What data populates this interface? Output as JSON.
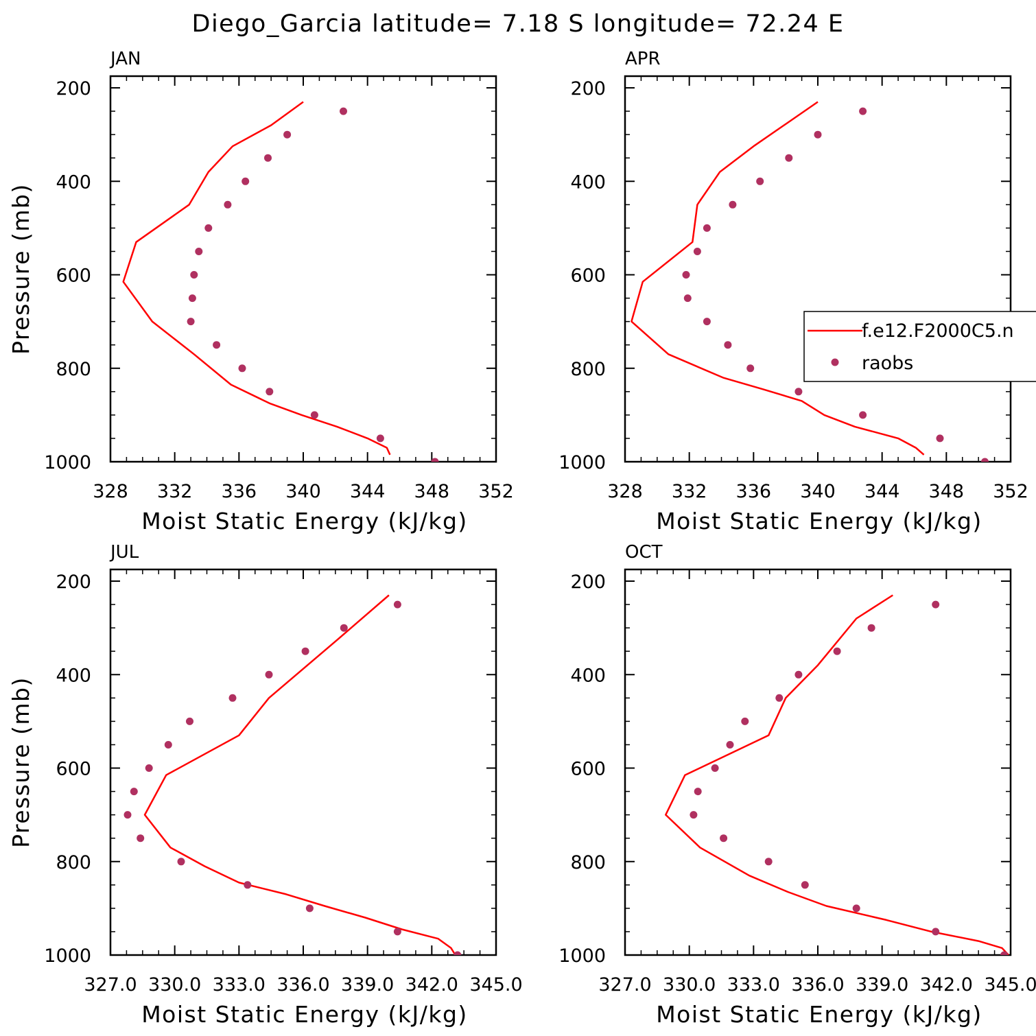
{
  "title": "Diego_Garcia  latitude= 7.18 S longitude= 72.24 E",
  "colors": {
    "model": "#ff0000",
    "obs": "#b03060",
    "axis": "#000000"
  },
  "legend": {
    "model_label": "f.e12.F2000C5.n",
    "obs_label": "raobs"
  },
  "chart_data": [
    {
      "type": "line",
      "panel": "JAN",
      "xlabel": "Moist Static Energy (kJ/kg)",
      "ylabel": "Pressure (mb)",
      "xlim": [
        328,
        352
      ],
      "ylim": [
        1000,
        200
      ],
      "xticks": [
        328,
        332,
        336,
        340,
        344,
        348,
        352
      ],
      "xtick_labels": [
        "328",
        "332",
        "336",
        "340",
        "344",
        "348",
        "352"
      ],
      "yticks": [
        200,
        400,
        600,
        800,
        1000
      ],
      "ytick_labels": [
        "200",
        "400",
        "600",
        "800",
        "1000"
      ],
      "series": [
        {
          "label": "f.e12.F2000C5.n",
          "x": [
            340.0,
            338.0,
            335.6,
            334.1,
            332.9,
            329.6,
            328.8,
            330.6,
            333.2,
            335.5,
            337.9,
            339.9,
            342.1,
            344.0,
            345.2,
            345.4
          ],
          "y": [
            230,
            280,
            325,
            380,
            450,
            530,
            615,
            700,
            770,
            835,
            875,
            900,
            925,
            950,
            970,
            985
          ]
        },
        {
          "label": "raobs",
          "x": [
            342.5,
            339.0,
            337.8,
            336.4,
            335.3,
            334.1,
            333.5,
            333.2,
            333.1,
            333.0,
            334.6,
            336.2,
            337.9,
            340.7,
            344.8,
            348.2
          ],
          "y": [
            250,
            300,
            350,
            400,
            450,
            500,
            550,
            600,
            650,
            700,
            750,
            800,
            850,
            900,
            950,
            1000
          ]
        }
      ]
    },
    {
      "type": "line",
      "panel": "APR",
      "xlabel": "Moist Static Energy (kJ/kg)",
      "ylabel": "",
      "xlim": [
        328,
        352
      ],
      "ylim": [
        1000,
        200
      ],
      "xticks": [
        328,
        332,
        336,
        340,
        344,
        348,
        352
      ],
      "xtick_labels": [
        "328",
        "332",
        "336",
        "340",
        "344",
        "348",
        "352"
      ],
      "yticks": [
        200,
        400,
        600,
        800,
        1000
      ],
      "ytick_labels": [
        "200",
        "400",
        "600",
        "800",
        "1000"
      ],
      "series": [
        {
          "label": "f.e12.F2000C5.n",
          "x": [
            340.0,
            336.0,
            333.9,
            332.5,
            332.2,
            329.1,
            328.4,
            330.7,
            334.1,
            336.6,
            339.0,
            340.4,
            342.3,
            345.0,
            346.1,
            346.6
          ],
          "y": [
            230,
            325,
            380,
            450,
            530,
            615,
            700,
            770,
            820,
            845,
            870,
            900,
            925,
            950,
            970,
            985
          ]
        },
        {
          "label": "raobs",
          "x": [
            342.8,
            340.0,
            338.2,
            336.4,
            334.7,
            333.1,
            332.5,
            331.8,
            331.9,
            333.1,
            334.4,
            335.8,
            338.8,
            342.8,
            347.6,
            350.4
          ],
          "y": [
            250,
            300,
            350,
            400,
            450,
            500,
            550,
            600,
            650,
            700,
            750,
            800,
            850,
            900,
            950,
            1000
          ]
        }
      ]
    },
    {
      "type": "line",
      "panel": "JUL",
      "xlabel": "Moist Static Energy (kJ/kg)",
      "ylabel": "Pressure (mb)",
      "xlim": [
        327,
        345
      ],
      "ylim": [
        1000,
        200
      ],
      "xticks": [
        327,
        330,
        333,
        336,
        339,
        342,
        345
      ],
      "xtick_labels": [
        "327.0",
        "330.0",
        "333.0",
        "336.0",
        "339.0",
        "342.0",
        "345.0"
      ],
      "yticks": [
        200,
        400,
        600,
        800,
        1000
      ],
      "ytick_labels": [
        "200",
        "400",
        "600",
        "800",
        "1000"
      ],
      "series": [
        {
          "label": "f.e12.F2000C5.n",
          "x": [
            340.0,
            337.6,
            334.4,
            333.0,
            329.6,
            328.6,
            329.8,
            331.4,
            333.0,
            335.2,
            337.0,
            338.9,
            340.6,
            342.3,
            342.9,
            343.1
          ],
          "y": [
            230,
            325,
            450,
            530,
            615,
            700,
            770,
            810,
            845,
            870,
            895,
            920,
            945,
            965,
            985,
            1000
          ]
        },
        {
          "label": "raobs",
          "x": [
            340.4,
            337.9,
            336.1,
            334.4,
            332.7,
            330.7,
            329.7,
            328.8,
            328.1,
            327.8,
            328.4,
            330.3,
            333.4,
            336.3,
            340.4,
            343.2
          ],
          "y": [
            250,
            300,
            350,
            400,
            450,
            500,
            550,
            600,
            650,
            700,
            750,
            800,
            850,
            900,
            950,
            1000
          ]
        }
      ]
    },
    {
      "type": "line",
      "panel": "OCT",
      "xlabel": "Moist Static Energy (kJ/kg)",
      "ylabel": "",
      "xlim": [
        327,
        345
      ],
      "ylim": [
        1000,
        200
      ],
      "xticks": [
        327,
        330,
        333,
        336,
        339,
        342,
        345
      ],
      "xtick_labels": [
        "327.0",
        "330.0",
        "333.0",
        "336.0",
        "339.0",
        "342.0",
        "345.0"
      ],
      "yticks": [
        200,
        400,
        600,
        800,
        1000
      ],
      "ytick_labels": [
        "200",
        "400",
        "600",
        "800",
        "1000"
      ],
      "series": [
        {
          "label": "f.e12.F2000C5.n",
          "x": [
            339.5,
            337.8,
            336.0,
            334.5,
            333.7,
            329.8,
            328.9,
            330.5,
            332.8,
            334.6,
            336.4,
            339.2,
            341.3,
            343.5,
            344.6,
            344.9
          ],
          "y": [
            230,
            280,
            380,
            450,
            530,
            615,
            700,
            770,
            830,
            865,
            895,
            925,
            950,
            970,
            985,
            1000
          ]
        },
        {
          "label": "raobs",
          "x": [
            341.5,
            338.5,
            336.9,
            335.1,
            334.2,
            332.6,
            331.9,
            331.2,
            330.4,
            330.2,
            331.6,
            333.7,
            335.4,
            337.8,
            341.5,
            344.7
          ],
          "y": [
            250,
            300,
            350,
            400,
            450,
            500,
            550,
            600,
            650,
            700,
            750,
            800,
            850,
            900,
            950,
            1000
          ]
        }
      ]
    }
  ]
}
